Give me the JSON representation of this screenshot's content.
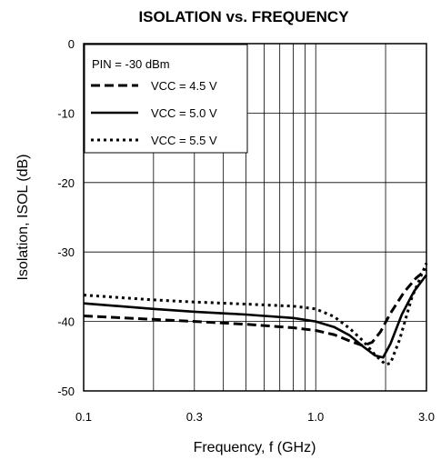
{
  "chart_data": {
    "type": "line",
    "title": "ISOLATION vs. FREQUENCY",
    "xlabel": "Frequency, f (GHz)",
    "ylabel": "Isolation, ISOL (dB)",
    "x_scale": "log",
    "xlim": [
      0.1,
      3.0
    ],
    "ylim": [
      -50,
      0
    ],
    "x_tick_labels": [
      {
        "value": 0.1,
        "label": "0.1"
      },
      {
        "value": 0.3,
        "label": "0.3"
      },
      {
        "value": 1.0,
        "label": "1.0"
      },
      {
        "value": 3.0,
        "label": "3.0"
      }
    ],
    "y_tick_labels": [
      {
        "value": 0,
        "label": "0"
      },
      {
        "value": -10,
        "label": "-10"
      },
      {
        "value": -20,
        "label": "-20"
      },
      {
        "value": -30,
        "label": "-30"
      },
      {
        "value": -40,
        "label": "-40"
      },
      {
        "value": -50,
        "label": "-50"
      }
    ],
    "x_gridlines": [
      0.1,
      0.2,
      0.3,
      0.4,
      0.5,
      0.6,
      0.7,
      0.8,
      0.9,
      1.0,
      2.0,
      3.0
    ],
    "y_gridlines": [
      0,
      -10,
      -20,
      -30,
      -40,
      -50
    ],
    "grid": true,
    "legend": {
      "placement": "top-left",
      "header": "PIN = -30 dBm"
    },
    "series": [
      {
        "name": "VCC = 4.5 V",
        "style": "dashed",
        "points": [
          [
            0.1,
            -39.2
          ],
          [
            0.2,
            -39.7
          ],
          [
            0.3,
            -40.0
          ],
          [
            0.5,
            -40.4
          ],
          [
            0.8,
            -40.9
          ],
          [
            1.0,
            -41.3
          ],
          [
            1.2,
            -41.9
          ],
          [
            1.4,
            -42.8
          ],
          [
            1.6,
            -43.5
          ],
          [
            1.75,
            -43.0
          ],
          [
            1.9,
            -41.5
          ],
          [
            2.1,
            -38.8
          ],
          [
            2.4,
            -35.8
          ],
          [
            2.7,
            -33.8
          ],
          [
            3.0,
            -32.5
          ]
        ]
      },
      {
        "name": "VCC = 5.0 V",
        "style": "solid",
        "points": [
          [
            0.1,
            -37.4
          ],
          [
            0.2,
            -38.2
          ],
          [
            0.3,
            -38.6
          ],
          [
            0.5,
            -39.0
          ],
          [
            0.8,
            -39.5
          ],
          [
            1.0,
            -40.0
          ],
          [
            1.2,
            -40.8
          ],
          [
            1.4,
            -42.0
          ],
          [
            1.6,
            -43.6
          ],
          [
            1.8,
            -44.9
          ],
          [
            1.95,
            -45.2
          ],
          [
            2.1,
            -43.2
          ],
          [
            2.35,
            -39.0
          ],
          [
            2.65,
            -35.7
          ],
          [
            3.0,
            -33.3
          ]
        ]
      },
      {
        "name": "VCC = 5.5 V",
        "style": "dotted",
        "points": [
          [
            0.1,
            -36.2
          ],
          [
            0.2,
            -36.9
          ],
          [
            0.3,
            -37.2
          ],
          [
            0.5,
            -37.5
          ],
          [
            0.8,
            -37.8
          ],
          [
            1.0,
            -38.2
          ],
          [
            1.2,
            -39.3
          ],
          [
            1.4,
            -41.0
          ],
          [
            1.6,
            -42.8
          ],
          [
            1.8,
            -44.8
          ],
          [
            2.0,
            -46.2
          ],
          [
            2.1,
            -46.0
          ],
          [
            2.3,
            -42.6
          ],
          [
            2.6,
            -36.5
          ],
          [
            3.0,
            -31.6
          ]
        ]
      }
    ]
  }
}
